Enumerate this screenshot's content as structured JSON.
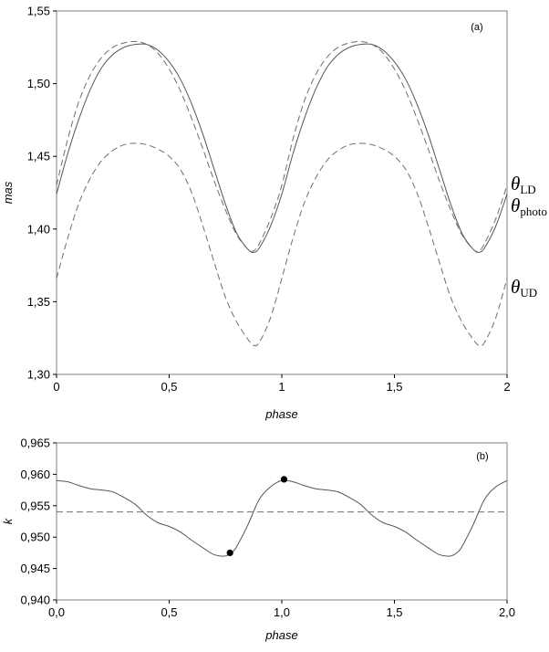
{
  "chart_data": [
    {
      "type": "line",
      "panel_label": "(a)",
      "xlabel": "phase",
      "ylabel": "mas",
      "xlim": [
        0,
        2
      ],
      "ylim": [
        1.3,
        1.55
      ],
      "x_ticks": [
        "0",
        "0,5",
        "1",
        "1,5",
        "2"
      ],
      "y_ticks": [
        "1,30",
        "1,35",
        "1,40",
        "1,45",
        "1,50",
        "1,55"
      ],
      "grid": false,
      "series": [
        {
          "name": "θLD",
          "label_main": "θ",
          "label_sub": "LD",
          "style": "solid",
          "x": [
            0,
            0.05,
            0.1,
            0.15,
            0.2,
            0.25,
            0.3,
            0.35,
            0.4,
            0.45,
            0.5,
            0.55,
            0.6,
            0.65,
            0.7,
            0.75,
            0.8,
            0.85,
            0.875,
            0.9,
            0.95,
            1.0,
            1.05,
            1.1,
            1.15,
            1.2,
            1.25,
            1.3,
            1.35,
            1.4,
            1.45,
            1.5,
            1.55,
            1.6,
            1.65,
            1.7,
            1.75,
            1.8,
            1.85,
            1.875,
            1.9,
            1.95,
            2.0
          ],
          "y": [
            1.424,
            1.452,
            1.476,
            1.496,
            1.511,
            1.52,
            1.525,
            1.527,
            1.527,
            1.523,
            1.515,
            1.503,
            1.486,
            1.465,
            1.441,
            1.417,
            1.397,
            1.386,
            1.384,
            1.387,
            1.402,
            1.424,
            1.452,
            1.476,
            1.496,
            1.511,
            1.52,
            1.525,
            1.527,
            1.527,
            1.523,
            1.515,
            1.503,
            1.486,
            1.465,
            1.441,
            1.417,
            1.397,
            1.386,
            1.384,
            1.387,
            1.402,
            1.424
          ]
        },
        {
          "name": "θphoto",
          "label_main": "θ",
          "label_sub": "photo",
          "style": "dashed",
          "x": [
            0,
            0.05,
            0.1,
            0.15,
            0.2,
            0.25,
            0.3,
            0.35,
            0.4,
            0.45,
            0.5,
            0.55,
            0.6,
            0.65,
            0.7,
            0.75,
            0.8,
            0.85,
            0.875,
            0.9,
            0.95,
            1.0,
            1.05,
            1.1,
            1.15,
            1.2,
            1.25,
            1.3,
            1.35,
            1.4,
            1.45,
            1.5,
            1.55,
            1.6,
            1.65,
            1.7,
            1.75,
            1.8,
            1.85,
            1.875,
            1.9,
            1.95,
            2.0
          ],
          "y": [
            1.43,
            1.462,
            1.488,
            1.506,
            1.518,
            1.525,
            1.528,
            1.529,
            1.527,
            1.521,
            1.51,
            1.495,
            1.476,
            1.455,
            1.433,
            1.413,
            1.396,
            1.386,
            1.385,
            1.39,
            1.407,
            1.43,
            1.462,
            1.488,
            1.506,
            1.518,
            1.525,
            1.528,
            1.529,
            1.527,
            1.521,
            1.51,
            1.495,
            1.476,
            1.455,
            1.433,
            1.413,
            1.396,
            1.386,
            1.385,
            1.39,
            1.407,
            1.43
          ]
        },
        {
          "name": "θUD",
          "label_main": "θ",
          "label_sub": "UD",
          "style": "dashed",
          "x": [
            0,
            0.05,
            0.1,
            0.15,
            0.2,
            0.25,
            0.3,
            0.35,
            0.4,
            0.45,
            0.5,
            0.55,
            0.6,
            0.65,
            0.7,
            0.75,
            0.8,
            0.85,
            0.875,
            0.9,
            0.95,
            1.0,
            1.05,
            1.1,
            1.15,
            1.2,
            1.25,
            1.3,
            1.35,
            1.4,
            1.45,
            1.5,
            1.55,
            1.6,
            1.65,
            1.7,
            1.75,
            1.8,
            1.85,
            1.875,
            1.9,
            1.95,
            2.0
          ],
          "y": [
            1.366,
            1.394,
            1.418,
            1.435,
            1.447,
            1.454,
            1.458,
            1.459,
            1.458,
            1.455,
            1.45,
            1.441,
            1.425,
            1.402,
            1.377,
            1.353,
            1.336,
            1.324,
            1.32,
            1.322,
            1.339,
            1.366,
            1.394,
            1.418,
            1.435,
            1.447,
            1.454,
            1.458,
            1.459,
            1.458,
            1.455,
            1.45,
            1.441,
            1.425,
            1.402,
            1.377,
            1.353,
            1.336,
            1.324,
            1.32,
            1.322,
            1.339,
            1.366
          ]
        }
      ]
    },
    {
      "type": "line",
      "panel_label": "(b)",
      "xlabel": "phase",
      "ylabel": "k",
      "xlim": [
        0,
        2
      ],
      "ylim": [
        0.94,
        0.965
      ],
      "x_ticks": [
        "0,0",
        "0,5",
        "1,0",
        "1,5",
        "2,0"
      ],
      "y_ticks": [
        "0,940",
        "0,945",
        "0,950",
        "0,955",
        "0,960",
        "0,965"
      ],
      "grid": false,
      "series": [
        {
          "style": "solid",
          "x": [
            0,
            0.05,
            0.1,
            0.15,
            0.2,
            0.25,
            0.3,
            0.35,
            0.4,
            0.45,
            0.5,
            0.55,
            0.6,
            0.65,
            0.7,
            0.75,
            0.78,
            0.8,
            0.85,
            0.9,
            0.95,
            1.0,
            1.05,
            1.1,
            1.15,
            1.2,
            1.25,
            1.3,
            1.35,
            1.4,
            1.45,
            1.5,
            1.55,
            1.6,
            1.65,
            1.7,
            1.75,
            1.78,
            1.8,
            1.85,
            1.9,
            1.95,
            2.0
          ],
          "y": [
            0.959,
            0.9588,
            0.9582,
            0.9577,
            0.9575,
            0.9572,
            0.9563,
            0.9552,
            0.9535,
            0.9523,
            0.9517,
            0.9508,
            0.9495,
            0.9483,
            0.9472,
            0.947,
            0.9476,
            0.9485,
            0.952,
            0.956,
            0.958,
            0.959,
            0.9588,
            0.9582,
            0.9577,
            0.9575,
            0.9572,
            0.9563,
            0.9552,
            0.9535,
            0.9523,
            0.9517,
            0.9508,
            0.9495,
            0.9483,
            0.9472,
            0.947,
            0.9476,
            0.9485,
            0.952,
            0.956,
            0.958,
            0.959
          ]
        },
        {
          "style": "dashed",
          "x": [
            0,
            2
          ],
          "y": [
            0.954,
            0.954
          ]
        }
      ],
      "markers": [
        {
          "x": 0.77,
          "y": 0.9475
        },
        {
          "x": 1.01,
          "y": 0.9592
        }
      ]
    }
  ]
}
